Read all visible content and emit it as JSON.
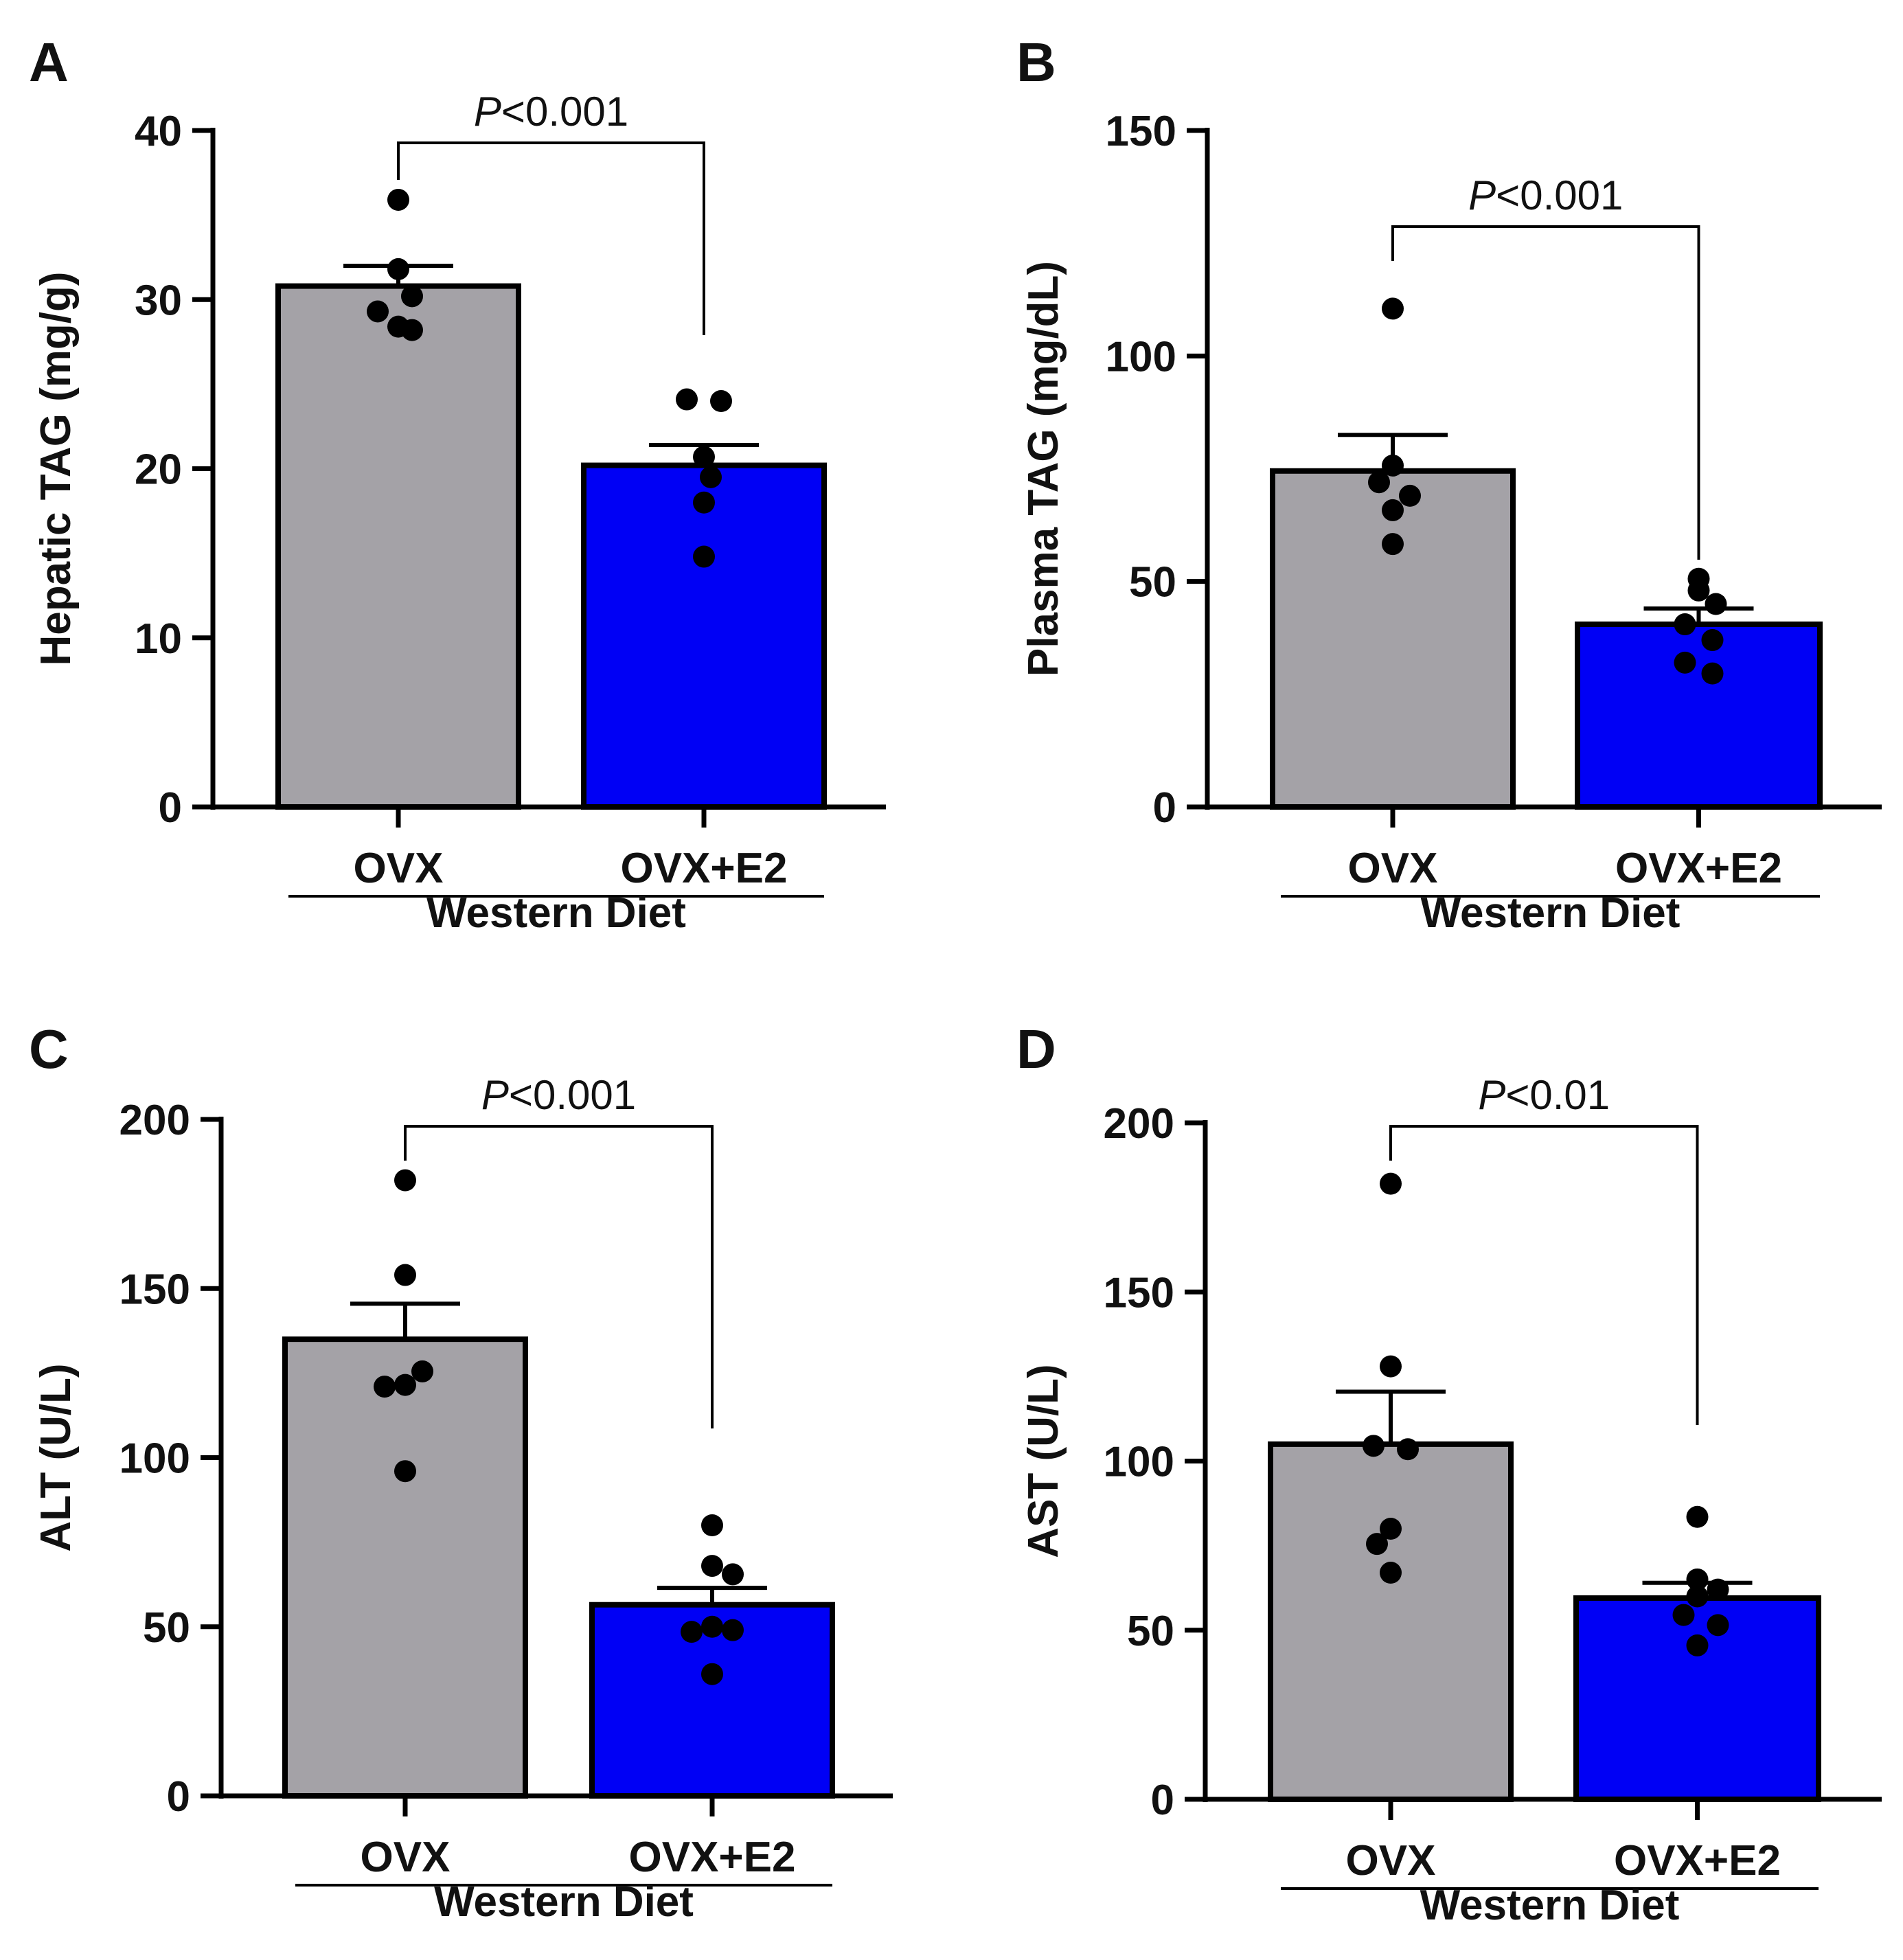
{
  "colors": {
    "ovx": "#a4a2a7",
    "ovx_e2": "#0000f5",
    "axis": "#000000",
    "point": "#000000"
  },
  "chart_data": [
    {
      "panel": "A",
      "type": "bar",
      "ylabel": "Hepatic TAG (mg/g)",
      "ylim": [
        0,
        40
      ],
      "yticks": [
        0,
        10,
        20,
        30,
        40
      ],
      "categories": [
        "OVX",
        "OVX+E2"
      ],
      "group_label": "Western Diet",
      "values": [
        30.8,
        20.2
      ],
      "sem": [
        1.2,
        1.2
      ],
      "points": [
        [
          35.9,
          31.8,
          30.2,
          29.3,
          28.4,
          28.2
        ],
        [
          24.1,
          24.0,
          20.7,
          19.5,
          18.0,
          14.8
        ]
      ],
      "comparison": {
        "p_italic": "P",
        "p_rest": "<0.001"
      }
    },
    {
      "panel": "B",
      "type": "bar",
      "ylabel": "Plasma TAG (mg/dL)",
      "ylim": [
        0,
        150
      ],
      "yticks": [
        0,
        50,
        100,
        150
      ],
      "categories": [
        "OVX",
        "OVX+E2"
      ],
      "group_label": "Western Diet",
      "values": [
        74.5,
        40.5
      ],
      "sem": [
        8.0,
        3.5
      ],
      "points": [
        [
          110.5,
          75.7,
          72.0,
          69.0,
          65.8,
          58.3
        ],
        [
          50.6,
          48.0,
          45.0,
          40.5,
          37.0,
          32.0,
          29.6
        ]
      ],
      "comparison": {
        "p_italic": "P",
        "p_rest": "<0.001"
      }
    },
    {
      "panel": "C",
      "type": "bar",
      "ylabel": "ALT (U/L)",
      "ylim": [
        0,
        200
      ],
      "yticks": [
        0,
        50,
        100,
        150,
        200
      ],
      "categories": [
        "OVX",
        "OVX+E2"
      ],
      "group_label": "Western Diet",
      "values": [
        135,
        56.5
      ],
      "sem": [
        10.5,
        5
      ],
      "points": [
        [
          182,
          154,
          125.5,
          121.5,
          121,
          96
        ],
        [
          80,
          68,
          65.5,
          50,
          49,
          48.5,
          36
        ]
      ],
      "comparison": {
        "p_italic": "P",
        "p_rest": "<0.001"
      }
    },
    {
      "panel": "D",
      "type": "bar",
      "ylabel": "AST (U/L)",
      "ylim": [
        0,
        200
      ],
      "yticks": [
        0,
        50,
        100,
        150,
        200
      ],
      "categories": [
        "OVX",
        "OVX+E2"
      ],
      "group_label": "Western Diet",
      "values": [
        105,
        59.5
      ],
      "sem": [
        15.5,
        4.5
      ],
      "points": [
        [
          182,
          128,
          104.5,
          103.5,
          80,
          75.5,
          67
        ],
        [
          83.5,
          65,
          62,
          60,
          54.5,
          51.5,
          45.5
        ]
      ],
      "comparison": {
        "p_italic": "P",
        "p_rest": "<0.01"
      }
    }
  ]
}
